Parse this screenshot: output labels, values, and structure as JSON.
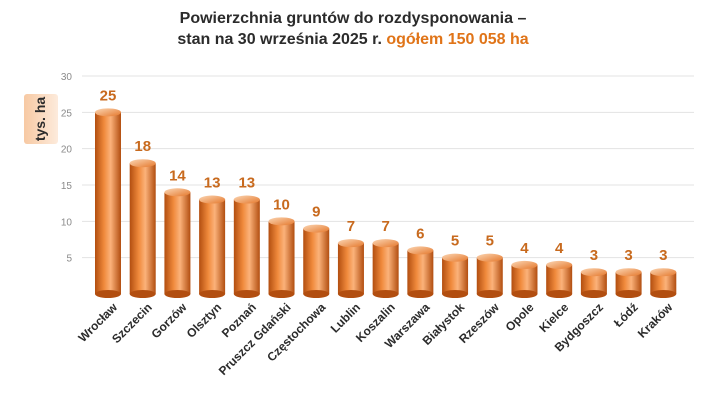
{
  "title": {
    "line1": "Powierzchnia gruntów do rozdysponowania –",
    "line2": "stan na 30 września 2025 r.",
    "highlight": "ogółem 150 058 ha"
  },
  "colors": {
    "bar_light": "#fbd6b4",
    "bar_mid": "#f08a3c",
    "bar_dark": "#b24e10",
    "value_label": "#c86a1e",
    "title_highlight": "#e07418"
  },
  "chart_data": {
    "type": "bar",
    "title": "Powierzchnia gruntów do rozdysponowania – stan na 30 września 2025 r. ogółem 150 058 ha",
    "ylabel": "tys. ha",
    "xlabel": "",
    "ylim": [
      0,
      30
    ],
    "yticks": [
      5,
      10,
      15,
      20,
      25,
      30
    ],
    "grid": true,
    "categories": [
      "Wrocław",
      "Szczecin",
      "Gorzów",
      "Olsztyn",
      "Poznań",
      "Pruszcz Gdański",
      "Częstochowa",
      "Lublin",
      "Koszalin",
      "Warszawa",
      "Białystok",
      "Rzeszów",
      "Opole",
      "Kielce",
      "Bydgoszcz",
      "Łódź",
      "Kraków"
    ],
    "values": [
      25,
      18,
      14,
      13,
      13,
      10,
      9,
      7,
      7,
      6,
      5,
      5,
      4,
      4,
      3,
      3,
      3
    ],
    "value_labels": [
      "25",
      "18",
      "14",
      "13",
      "13",
      "10",
      "9",
      "7",
      "7",
      "6",
      "5",
      "5",
      "4",
      "4",
      "3",
      "3",
      "3"
    ]
  }
}
